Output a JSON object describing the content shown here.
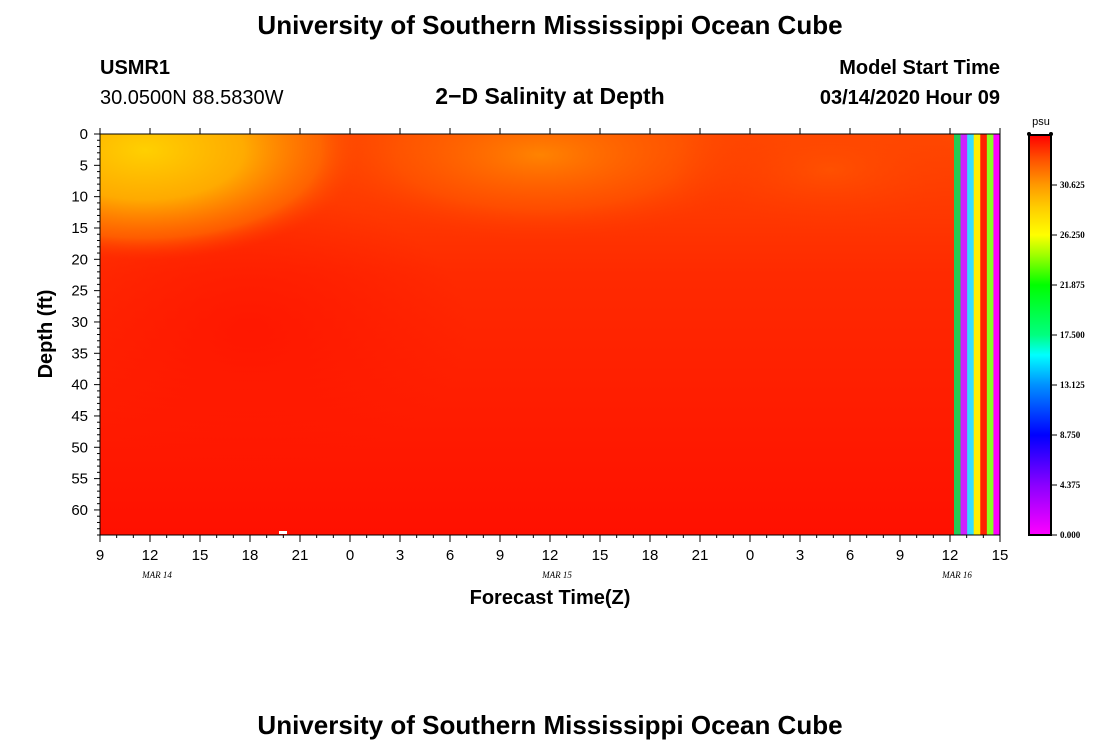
{
  "header": {
    "title": "University of Southern Mississippi Ocean Cube",
    "station": "USMR1",
    "coords": "30.0500N 88.5830W",
    "chart_title": "2−D Salinity at Depth",
    "model_start_label": "Model Start Time",
    "model_start_value": "03/14/2020 Hour 09"
  },
  "footer": {
    "title": "University of Southern Mississippi Ocean Cube"
  },
  "chart_data": {
    "type": "heatmap",
    "title": "2−D Salinity at Depth",
    "xlabel": "Forecast Time(Z)",
    "ylabel": "Depth (ft)",
    "x_start_hour": 9,
    "x_range_hours": [
      0,
      54
    ],
    "x_tick_labels": [
      "9",
      "12",
      "15",
      "18",
      "21",
      "0",
      "3",
      "6",
      "9",
      "12",
      "15",
      "18",
      "21",
      "0",
      "3",
      "6",
      "9",
      "12",
      "15"
    ],
    "date_labels": [
      {
        "label": "MAR 14",
        "at_hour": 3
      },
      {
        "label": "MAR 15",
        "at_hour": 27
      },
      {
        "label": "MAR 16",
        "at_hour": 51
      }
    ],
    "y_range_ft": [
      0,
      64
    ],
    "y_tick_labels": [
      "0",
      "5",
      "10",
      "15",
      "20",
      "25",
      "30",
      "35",
      "40",
      "45",
      "50",
      "55",
      "60"
    ],
    "colorbar": {
      "unit": "psu",
      "min": 0.0,
      "max": 35.0,
      "tick_labels": [
        "0.000",
        "4.375",
        "8.750",
        "13.125",
        "17.500",
        "21.875",
        "26.250",
        "30.625"
      ],
      "colors": [
        "#ff00ff",
        "#9900ff",
        "#0000ff",
        "#0088ff",
        "#00ffff",
        "#00ff88",
        "#00ff00",
        "#99ff00",
        "#ffff00",
        "#ffcc00",
        "#ff9900",
        "#ff5500",
        "#ff0000"
      ]
    },
    "field_colors": {
      "fresh_surface": "#ffcc00",
      "mid_surface": "#ff8800",
      "bulk": "#ff2200",
      "deep": "#ff0c00"
    },
    "stripe_colors": [
      "#22cc55",
      "#cc22ff",
      "#33ddff",
      "#ffee00",
      "#ff2200",
      "#88ff22",
      "#ff00ff"
    ]
  }
}
